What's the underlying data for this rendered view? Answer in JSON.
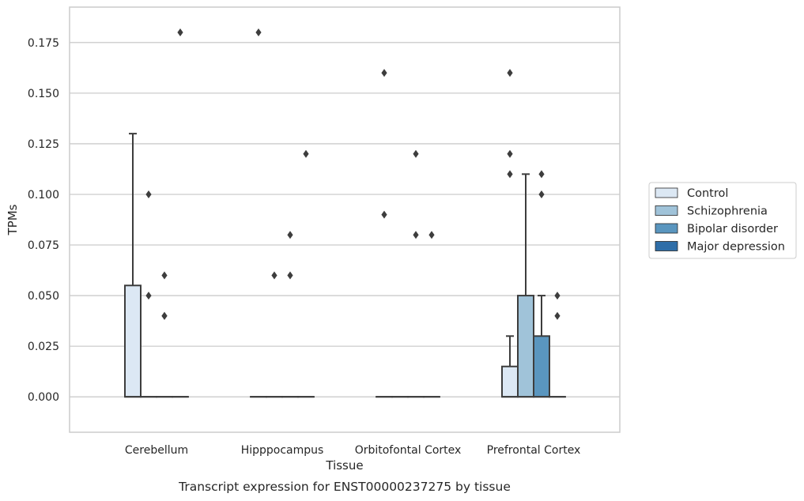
{
  "chart_data": {
    "type": "box",
    "caption": "Transcript expression for ENST00000237275 by tissue",
    "xlabel": "Tissue",
    "ylabel": "TPMs",
    "ylim": [
      -0.0175,
      0.1925
    ],
    "yticks": [
      "0.000",
      "0.025",
      "0.050",
      "0.075",
      "0.100",
      "0.125",
      "0.150",
      "0.175"
    ],
    "grid": "horizontal",
    "legend_position": "right",
    "categories": [
      "Cerebellum",
      "Hipppocampus",
      "Orbitofontal Cortex",
      "Prefrontal Cortex"
    ],
    "series": [
      {
        "name": "Control",
        "color": "#dce8f4",
        "boxes": [
          {
            "q1": 0.0,
            "median": 0.0,
            "q3": 0.055,
            "whisker_low": 0.0,
            "whisker_high": 0.13,
            "outliers": []
          },
          {
            "q1": 0.0,
            "median": 0.0,
            "q3": 0.0,
            "whisker_low": 0.0,
            "whisker_high": 0.0,
            "outliers": [
              0.18
            ]
          },
          {
            "q1": 0.0,
            "median": 0.0,
            "q3": 0.0,
            "whisker_low": 0.0,
            "whisker_high": 0.0,
            "outliers": [
              0.16,
              0.09
            ]
          },
          {
            "q1": 0.0,
            "median": 0.0,
            "q3": 0.015,
            "whisker_low": 0.0,
            "whisker_high": 0.03,
            "outliers": [
              0.16,
              0.12,
              0.11
            ]
          }
        ]
      },
      {
        "name": "Schizophrenia",
        "color": "#a0c3d9",
        "boxes": [
          {
            "q1": 0.0,
            "median": 0.0,
            "q3": 0.0,
            "whisker_low": 0.0,
            "whisker_high": 0.0,
            "outliers": [
              0.1,
              0.05
            ]
          },
          {
            "q1": 0.0,
            "median": 0.0,
            "q3": 0.0,
            "whisker_low": 0.0,
            "whisker_high": 0.0,
            "outliers": [
              0.06
            ]
          },
          {
            "q1": 0.0,
            "median": 0.0,
            "q3": 0.0,
            "whisker_low": 0.0,
            "whisker_high": 0.0,
            "outliers": []
          },
          {
            "q1": 0.0,
            "median": 0.0,
            "q3": 0.05,
            "whisker_low": 0.0,
            "whisker_high": 0.11,
            "outliers": []
          }
        ]
      },
      {
        "name": "Bipolar disorder",
        "color": "#5a96bf",
        "boxes": [
          {
            "q1": 0.0,
            "median": 0.0,
            "q3": 0.0,
            "whisker_low": 0.0,
            "whisker_high": 0.0,
            "outliers": [
              0.06,
              0.04,
              0.04
            ]
          },
          {
            "q1": 0.0,
            "median": 0.0,
            "q3": 0.0,
            "whisker_low": 0.0,
            "whisker_high": 0.0,
            "outliers": [
              0.08,
              0.06
            ]
          },
          {
            "q1": 0.0,
            "median": 0.0,
            "q3": 0.0,
            "whisker_low": 0.0,
            "whisker_high": 0.0,
            "outliers": [
              0.12,
              0.08
            ]
          },
          {
            "q1": 0.0,
            "median": 0.0,
            "q3": 0.03,
            "whisker_low": 0.0,
            "whisker_high": 0.05,
            "outliers": [
              0.11,
              0.1
            ]
          }
        ]
      },
      {
        "name": "Major depression",
        "color": "#2f6ea8",
        "boxes": [
          {
            "q1": 0.0,
            "median": 0.0,
            "q3": 0.0,
            "whisker_low": 0.0,
            "whisker_high": 0.0,
            "outliers": [
              0.18
            ]
          },
          {
            "q1": 0.0,
            "median": 0.0,
            "q3": 0.0,
            "whisker_low": 0.0,
            "whisker_high": 0.0,
            "outliers": [
              0.12
            ]
          },
          {
            "q1": 0.0,
            "median": 0.0,
            "q3": 0.0,
            "whisker_low": 0.0,
            "whisker_high": 0.0,
            "outliers": [
              0.08
            ]
          },
          {
            "q1": 0.0,
            "median": 0.0,
            "q3": 0.0,
            "whisker_low": 0.0,
            "whisker_high": 0.0,
            "outliers": [
              0.05,
              0.04
            ]
          }
        ]
      }
    ]
  }
}
